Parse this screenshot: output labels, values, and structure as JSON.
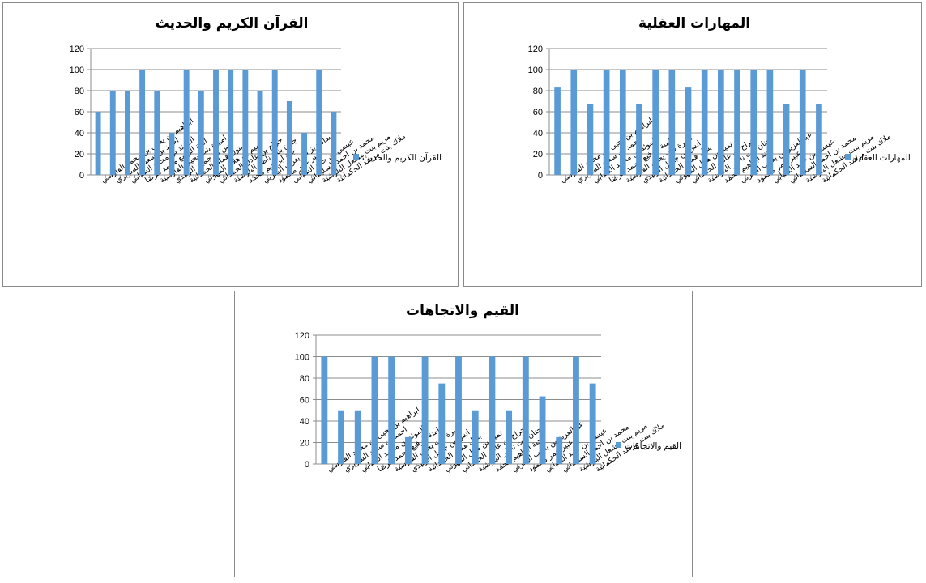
{
  "chart_data": [
    {
      "type": "bar",
      "title": "القرآن الكريم والحديث",
      "categories": [
        "ابراهيم بن يحيى بن محمد الفارسي",
        "احمد بن سعيد السريري",
        "الموئد بن محمد السيابي",
        "امنة الرفيع محمد الرضا",
        "اميرة بنت يحيى القارسية",
        "انس بن جميل الزنيدي",
        "بتول همام الحمدانية",
        "تميم بن هلال المهوتي",
        "جراح بن عادل الحمداني",
        "جنان بنت ناظر البلوشية",
        "جنة ابراهيم محمد",
        "عبدالعزيز بن يعرب اليعربي",
        "عبير عمر محمود",
        "عيسى بن حمد السيابي",
        "محمد بن احمد السليماني",
        "مريم بنت مشعل البلوشية",
        "ملاك بنت مرشد الحكمانية"
      ],
      "series": [
        {
          "name": "القرآن الكريم والحديث",
          "values": [
            60,
            80,
            80,
            100,
            80,
            40,
            100,
            80,
            100,
            100,
            100,
            80,
            100,
            70,
            40,
            100,
            60
          ]
        }
      ],
      "ylim": [
        0,
        120
      ],
      "yticks": [
        0,
        20,
        40,
        60,
        80,
        100,
        120
      ],
      "grid": true,
      "legend": "right",
      "colors": {
        "bar": "#5b9bd5",
        "grid": "#8c8c8c",
        "axis": "#8c8c8c"
      }
    },
    {
      "type": "bar",
      "title": "المهارات العقلية",
      "categories": [
        "ابراهيم بن يحيى بن محمد الفارسي",
        "احمد بن سعيد السريري",
        "الموئد بن محمد السيابي",
        "امنة الرفيع محمد الرضا",
        "اميرة بنت يحيى القارسية",
        "انس بن جميل الزنيدي",
        "بتول همام الحمدانية",
        "تميم بن هلال المهوتي",
        "جراح بن عادل الحمداني",
        "جنان بنت ناظر البلوشية",
        "جنة ابراهيم محمد",
        "عبدالعزيز بن يعرب اليعربي",
        "عبير عمر محمود",
        "عيسى بن حمد السيابي",
        "محمد بن احمد السليماني",
        "مريم بنت مشعل البلوشية",
        "ملاك بنت مرشد الحكمانية"
      ],
      "series": [
        {
          "name": "المهارات العقلية",
          "values": [
            83,
            100,
            67,
            100,
            100,
            67,
            100,
            100,
            83,
            100,
            100,
            100,
            100,
            100,
            67,
            100,
            67
          ]
        }
      ],
      "ylim": [
        0,
        120
      ],
      "yticks": [
        0,
        20,
        40,
        60,
        80,
        100,
        120
      ],
      "grid": true,
      "legend": "right",
      "colors": {
        "bar": "#5b9bd5",
        "grid": "#8c8c8c",
        "axis": "#8c8c8c"
      }
    },
    {
      "type": "bar",
      "title": "القيم والاتجاهات",
      "categories": [
        "ابراهيم بن يحيى بن محمد الفارسي",
        "احمد بن سعيد السريري",
        "الموئد بن محمد السيابي",
        "امنة الرفيع محمد الرضا",
        "اميرة بنت يحيى القارسية",
        "انس بن جميل الزنيدي",
        "بتول همام الحمدانية",
        "تميم بن هلال المهوتي",
        "جراح بن عادل الحمداني",
        "جنان بنت ناظر البلوشية",
        "جنة ابراهيم محمد",
        "عبدالعزيز بن يعرب اليعربي",
        "عبير عمر محمود",
        "عيسى بن حمد السيابي",
        "محمد بن احمد السليماني",
        "مريم بنت مشعل البلوشية",
        "ملاك بنت مرشد الحكمانية"
      ],
      "series": [
        {
          "name": "القيم والاتجاهات",
          "values": [
            100,
            50,
            50,
            100,
            100,
            25,
            100,
            75,
            100,
            50,
            100,
            50,
            100,
            63,
            25,
            100,
            75
          ]
        }
      ],
      "ylim": [
        0,
        120
      ],
      "yticks": [
        0,
        20,
        40,
        60,
        80,
        100,
        120
      ],
      "grid": true,
      "legend": "right",
      "colors": {
        "bar": "#5b9bd5",
        "grid": "#8c8c8c",
        "axis": "#8c8c8c"
      }
    }
  ]
}
